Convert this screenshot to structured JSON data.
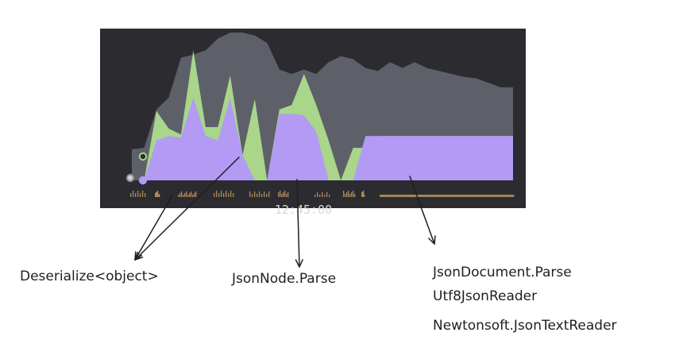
{
  "chart_data": {
    "type": "area",
    "title": "",
    "xlabel": "12:45:00",
    "ylabel": "",
    "x": [
      0,
      1,
      2,
      3,
      4,
      5,
      6,
      7,
      8,
      9,
      10,
      11,
      12,
      13,
      14,
      15,
      16,
      17,
      18,
      19,
      20,
      21,
      22,
      23,
      24,
      25,
      26,
      27,
      28,
      29,
      30,
      31
    ],
    "series": [
      {
        "name": "",
        "color": "#5e6069",
        "values": [
          0.21,
          0.22,
          0.48,
          0.56,
          0.83,
          0.85,
          0.88,
          0.96,
          1.0,
          1.0,
          0.98,
          0.93,
          0.75,
          0.72,
          0.75,
          0.72,
          0.8,
          0.84,
          0.82,
          0.76,
          0.74,
          0.8,
          0.76,
          0.8,
          0.76,
          0.74,
          0.72,
          0.7,
          0.69,
          0.66,
          0.63,
          0.63
        ]
      },
      {
        "name": "",
        "color": "#a9d68a",
        "values": [
          0.0,
          0.0,
          0.47,
          0.35,
          0.31,
          0.88,
          0.36,
          0.36,
          0.71,
          0.17,
          0.55,
          0.0,
          0.48,
          0.51,
          0.72,
          0.51,
          0.27,
          0.0,
          0.22,
          0.22,
          0.3,
          0.3,
          0.3,
          0.3,
          0.3,
          0.3,
          0.3,
          0.3,
          0.3,
          0.3,
          0.3,
          0.3
        ]
      },
      {
        "name": "",
        "color": "#b29af5",
        "values": [
          0.0,
          0.0,
          0.27,
          0.3,
          0.29,
          0.56,
          0.3,
          0.27,
          0.56,
          0.17,
          0.0,
          0.0,
          0.45,
          0.45,
          0.44,
          0.33,
          0.0,
          0.0,
          0.0,
          0.3,
          0.3,
          0.3,
          0.3,
          0.3,
          0.3,
          0.3,
          0.3,
          0.3,
          0.3,
          0.3,
          0.3,
          0.3
        ]
      }
    ],
    "ylim": [
      0,
      1
    ],
    "grid": false,
    "legend": "none"
  },
  "annotations": [
    {
      "text": "Deserialize<object>"
    },
    {
      "text": "JsonNode.Parse"
    },
    {
      "text": "JsonDocument.Parse"
    },
    {
      "text": "Utf8JsonReader"
    },
    {
      "text": "Newtonsoft.JsonTextReader"
    }
  ],
  "colors": {
    "panel": "#2c2c30",
    "gray_series": "#5e6069",
    "green_series": "#a9d68a",
    "purple_series": "#b29af5",
    "activity_ticks": "#b38f5d"
  }
}
